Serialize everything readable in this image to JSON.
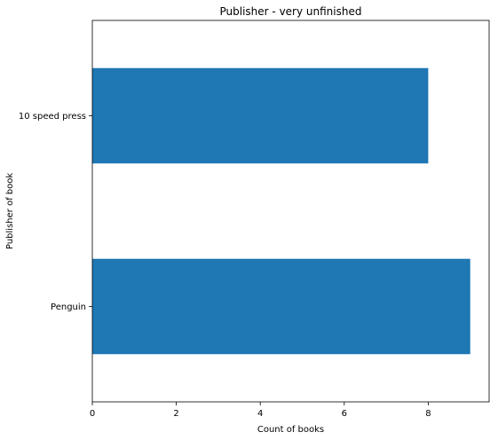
{
  "chart_data": {
    "type": "bar",
    "orientation": "horizontal",
    "title": "Publisher - very unfinished",
    "xlabel": "Count of books",
    "ylabel": "Publisher of book",
    "categories": [
      "Penguin",
      "10 speed press"
    ],
    "values": [
      9,
      8
    ],
    "x_ticks": [
      "0",
      "2",
      "4",
      "6",
      "8"
    ],
    "x_tick_values": [
      0,
      2,
      4,
      6,
      8
    ],
    "xlim": [
      0,
      9.45
    ],
    "grid": false,
    "legend": "none",
    "bar_color": "#1f77b4"
  }
}
